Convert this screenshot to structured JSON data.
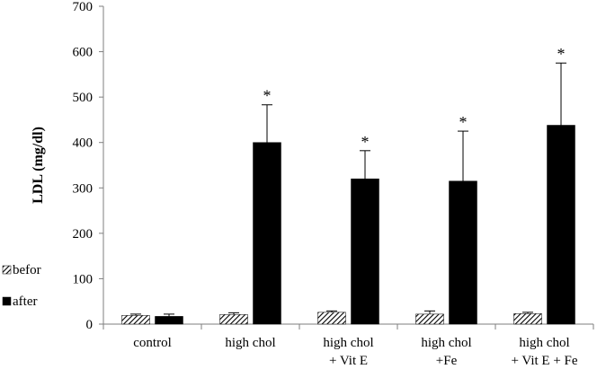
{
  "chart_data": {
    "type": "bar",
    "title": "",
    "xlabel": "",
    "ylabel": "LDL (mg/dl)",
    "ylim": [
      0,
      700
    ],
    "yticks": [
      0,
      100,
      200,
      300,
      400,
      500,
      600,
      700
    ],
    "grid": false,
    "legend_position": "bottom-left",
    "categories": [
      [
        "control"
      ],
      [
        "high chol"
      ],
      [
        "high chol",
        "+ Vit E"
      ],
      [
        "high chol",
        "+Fe"
      ],
      [
        "high chol",
        "+ Vit E + Fe"
      ]
    ],
    "series": [
      {
        "name": "befor",
        "pattern": "diagonal-hatch",
        "color": "#000000",
        "values": [
          19,
          21,
          26,
          22,
          23
        ],
        "errors": [
          3,
          4,
          3,
          7,
          3
        ],
        "significance": [
          "",
          "",
          "",
          "",
          ""
        ]
      },
      {
        "name": "after",
        "pattern": "solid",
        "color": "#000000",
        "values": [
          17,
          400,
          320,
          315,
          438
        ],
        "errors": [
          5,
          83,
          62,
          110,
          137
        ],
        "significance": [
          "",
          "*",
          "*",
          "*",
          "*"
        ]
      }
    ]
  }
}
